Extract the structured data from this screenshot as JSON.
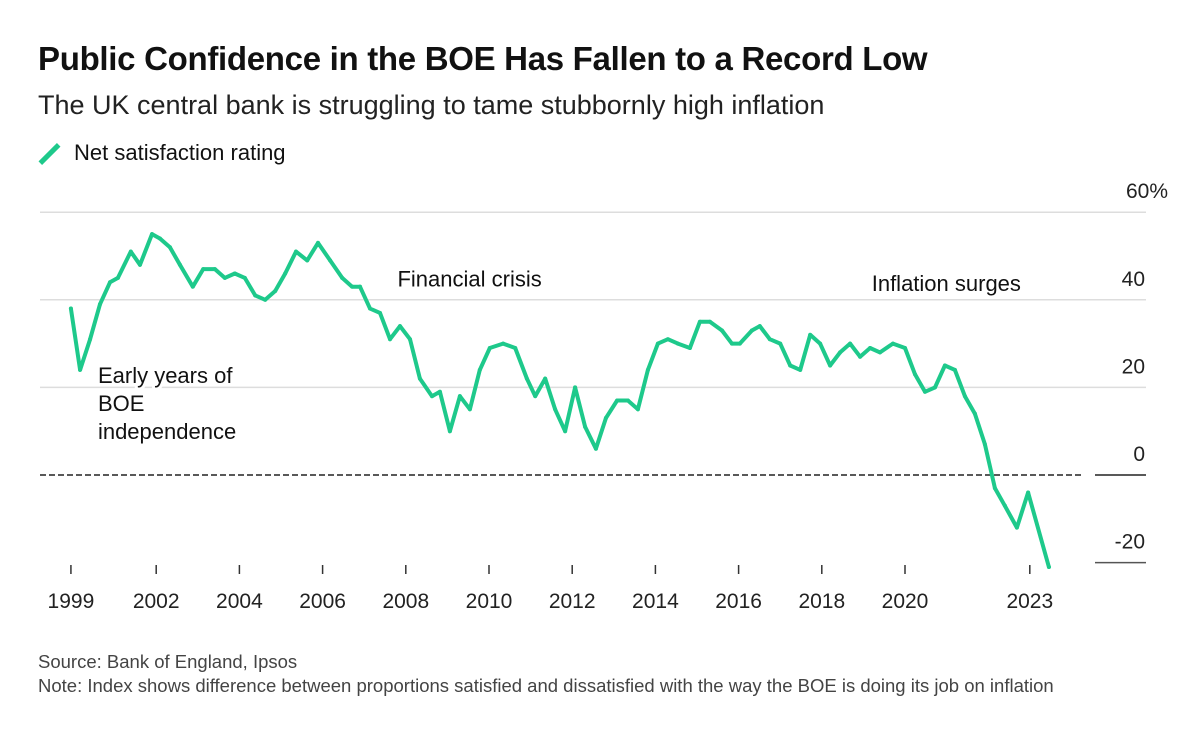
{
  "title": "Public Confidence in the BOE Has Fallen to a Record Low",
  "subtitle": "The UK central bank is struggling to tame stubbornly high inflation",
  "legend": [
    {
      "label": "Net satisfaction rating",
      "color": "#1ec98b"
    }
  ],
  "footer": {
    "source": "Source: Bank of England, Ipsos",
    "note": "Note: Index shows difference between proportions satisfied and dissatisfied with the way the BOE is doing its job on inflation"
  },
  "chart_data": {
    "type": "line",
    "title": "Public Confidence in the BOE Has Fallen to a Record Low",
    "xlabel": "",
    "ylabel": "",
    "ylim": [
      -20,
      60
    ],
    "y_axis_side": "right",
    "y_ticks": [
      {
        "value": 60,
        "label": "60%"
      },
      {
        "value": 40,
        "label": "40"
      },
      {
        "value": 20,
        "label": "20"
      },
      {
        "value": 0,
        "label": "0"
      },
      {
        "value": -20,
        "label": "-20"
      }
    ],
    "x_ticks": [
      {
        "value": 1999.95,
        "label": "1999"
      },
      {
        "value": 2002,
        "label": "2002"
      },
      {
        "value": 2004,
        "label": "2004"
      },
      {
        "value": 2006,
        "label": "2006"
      },
      {
        "value": 2008,
        "label": "2008"
      },
      {
        "value": 2010,
        "label": "2010"
      },
      {
        "value": 2012,
        "label": "2012"
      },
      {
        "value": 2014,
        "label": "2014"
      },
      {
        "value": 2016,
        "label": "2016"
      },
      {
        "value": 2018,
        "label": "2018"
      },
      {
        "value": 2020,
        "label": "2020"
      },
      {
        "value": 2023,
        "label": "2023"
      }
    ],
    "grid": true,
    "legend_position": "top-left",
    "annotations": [
      {
        "text": [
          "Early years of",
          "BOE",
          "independence"
        ],
        "x": 2000.6,
        "y": 21
      },
      {
        "text": [
          "Financial crisis"
        ],
        "x": 2007.8,
        "y": 43
      },
      {
        "text": [
          "Inflation surges"
        ],
        "x": 2019.2,
        "y": 42
      }
    ],
    "series": [
      {
        "name": "Net satisfaction rating",
        "color": "#1ec98b",
        "x": [
          1999.95,
          2000.17,
          2000.41,
          2000.65,
          2000.89,
          2001.08,
          2001.39,
          2001.61,
          2001.9,
          2002.09,
          2002.33,
          2002.57,
          2002.88,
          2003.13,
          2003.41,
          2003.65,
          2003.89,
          2004.13,
          2004.38,
          2004.62,
          2004.86,
          2005.1,
          2005.36,
          2005.63,
          2005.89,
          2006.18,
          2006.47,
          2006.71,
          2006.9,
          2007.14,
          2007.38,
          2007.62,
          2007.86,
          2008.1,
          2008.34,
          2008.63,
          2008.82,
          2009.06,
          2009.3,
          2009.54,
          2009.78,
          2010.02,
          2010.34,
          2010.63,
          2010.91,
          2011.11,
          2011.35,
          2011.59,
          2011.83,
          2012.07,
          2012.31,
          2012.57,
          2012.81,
          2013.08,
          2013.34,
          2013.58,
          2013.82,
          2014.06,
          2014.3,
          2014.54,
          2014.83,
          2015.07,
          2015.31,
          2015.6,
          2015.84,
          2016.03,
          2016.32,
          2016.51,
          2016.75,
          2017.0,
          2017.24,
          2017.48,
          2017.72,
          2017.96,
          2018.2,
          2018.44,
          2018.68,
          2018.92,
          2019.16,
          2019.4,
          2019.71,
          2020.0,
          2020.24,
          2020.48,
          2020.72,
          2020.96,
          2021.2,
          2021.44,
          2021.68,
          2021.92,
          2022.16,
          2022.4,
          2022.69,
          2022.96,
          2023.46
        ],
        "values": [
          38,
          24,
          31,
          39,
          44,
          45,
          51,
          48,
          55,
          54,
          52,
          48,
          43,
          47,
          47,
          45,
          46,
          45,
          41,
          40,
          42,
          46,
          51,
          49,
          53,
          49,
          45,
          43,
          43,
          38,
          37,
          31,
          34,
          31,
          22,
          18,
          19,
          10,
          18,
          15,
          24,
          29,
          30,
          29,
          22,
          18,
          22,
          15,
          10,
          20,
          11,
          6,
          13,
          17,
          17,
          15,
          24,
          30,
          31,
          30,
          29,
          35,
          35,
          33,
          30,
          30,
          33,
          34,
          31,
          30,
          25,
          24,
          32,
          30,
          25,
          28,
          30,
          27,
          29,
          28,
          30,
          29,
          23,
          19,
          20,
          25,
          24,
          18,
          14,
          7,
          -3,
          -7,
          -12,
          -4,
          -21
        ]
      }
    ]
  }
}
